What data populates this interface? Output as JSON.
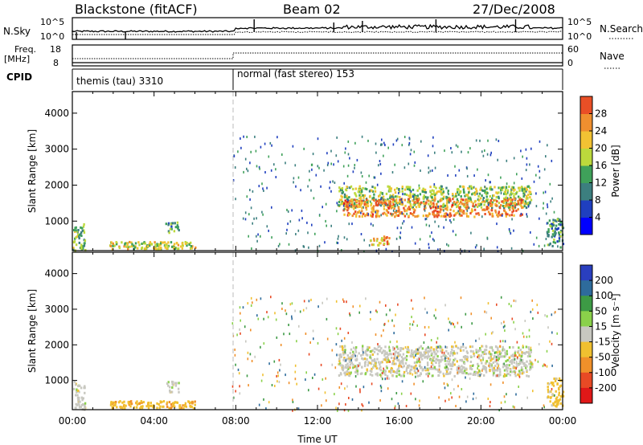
{
  "header": {
    "title": "Blackstone (fitACF)",
    "beam": "Beam 02",
    "date": "27/Dec/2008"
  },
  "summary": {
    "nsky_label": "N.Sky",
    "nsky_ticks": [
      "10^5",
      "10^0"
    ],
    "nsearch_label": "N.Search",
    "nsearch_ticks": [
      "10^5",
      "10^0"
    ],
    "freq_label": "Freq.",
    "freq_unit": "[MHz]",
    "freq_ticks": [
      "18",
      "8"
    ],
    "nave_label": "Nave",
    "nave_ticks": [
      "60",
      "0"
    ],
    "cpid_label": "CPID",
    "cpid_segments": [
      {
        "text": "themis (tau) 3310",
        "start_hour": 0
      },
      {
        "text": "normal (fast stereo) 153",
        "start_hour": 8
      }
    ]
  },
  "colors": {
    "power_scale": [
      "#0000ff",
      "#1f3fbf",
      "#3c7f7f",
      "#3fa15a",
      "#bcd93c",
      "#f2c233",
      "#ef8f2f",
      "#e94f26",
      "#e01e1e"
    ],
    "velocity_scale": [
      "#2a3fbf",
      "#2e6b9c",
      "#3d9a45",
      "#8ad14a",
      "#c8c8c0",
      "#f0c030",
      "#f0902a",
      "#e84a25",
      "#e01818"
    ]
  },
  "chart_data": [
    {
      "type": "heatmap",
      "name": "power-panel",
      "ylabel": "Slant Range [km]",
      "yticks": [
        "1000",
        "2000",
        "3000",
        "4000"
      ],
      "ylim": [
        180,
        4600
      ],
      "xlim": [
        0,
        24
      ],
      "colorbar": {
        "label": "Power [dB]",
        "ticks": [
          "4",
          "8",
          "12",
          "16",
          "20",
          "24",
          "28"
        ],
        "range": [
          0,
          30
        ]
      },
      "features": [
        {
          "hours": [
            0.0,
            0.6
          ],
          "range_km": [
            200,
            1000
          ],
          "level_db": 12
        },
        {
          "hours": [
            1.8,
            6.0
          ],
          "range_km": [
            250,
            450
          ],
          "level_db": 16
        },
        {
          "hours": [
            4.5,
            5.2
          ],
          "range_km": [
            700,
            1000
          ],
          "level_db": 10
        },
        {
          "hours": [
            13.0,
            22.5
          ],
          "range_km": [
            1400,
            2000
          ],
          "level_db": 14
        },
        {
          "hours": [
            13.2,
            22.0
          ],
          "range_km": [
            1150,
            1650
          ],
          "level_db": 22
        },
        {
          "hours": [
            14.5,
            15.5
          ],
          "range_km": [
            350,
            600
          ],
          "level_db": 20
        },
        {
          "hours": [
            23.2,
            24.0
          ],
          "range_km": [
            300,
            1100
          ],
          "level_db": 10
        }
      ]
    },
    {
      "type": "heatmap",
      "name": "velocity-panel",
      "ylabel": "Slant Range [km]",
      "yticks": [
        "1000",
        "2000",
        "3000",
        "4000"
      ],
      "ylim": [
        180,
        4600
      ],
      "xlim": [
        0,
        24
      ],
      "xlabel": "Time UT",
      "xticks": [
        "00:00",
        "04:00",
        "08:00",
        "12:00",
        "16:00",
        "20:00",
        "00:00"
      ],
      "colorbar": {
        "label": "Velocity [m s⁻¹]",
        "ticks": [
          "200",
          "100",
          "50",
          "15",
          "-15",
          "-50",
          "-100",
          "-200"
        ],
        "range": [
          -250,
          250
        ]
      },
      "features": [
        {
          "hours": [
            0.0,
            0.6
          ],
          "range_km": [
            200,
            1000
          ],
          "velocity": 0
        },
        {
          "hours": [
            1.8,
            6.0
          ],
          "range_km": [
            250,
            450
          ],
          "velocity": -40
        },
        {
          "hours": [
            4.5,
            5.2
          ],
          "range_km": [
            700,
            1000
          ],
          "velocity": 0
        },
        {
          "hours": [
            13.0,
            22.5
          ],
          "range_km": [
            1150,
            2000
          ],
          "velocity": 0
        },
        {
          "hours": [
            23.2,
            24.0
          ],
          "range_km": [
            300,
            1100
          ],
          "velocity": -30
        }
      ]
    }
  ]
}
